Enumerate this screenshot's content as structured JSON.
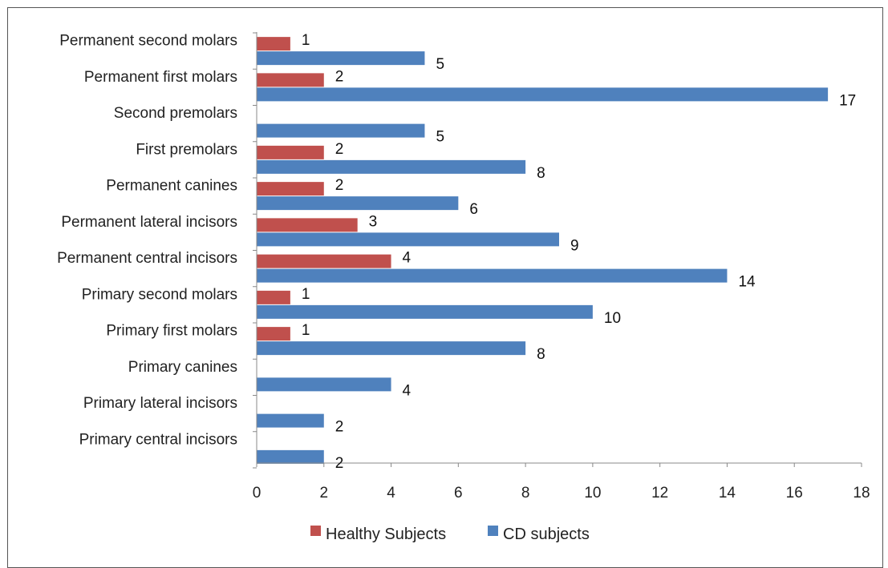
{
  "chart_data": {
    "type": "bar",
    "orientation": "horizontal",
    "categories": [
      "Permanent second molars",
      "Permanent first molars",
      "Second premolars",
      "First premolars",
      "Permanent canines",
      "Permanent lateral incisors",
      "Permanent central incisors",
      "Primary second molars",
      "Primary first molars",
      "Primary canines",
      "Primary lateral incisors",
      "Primary central incisors"
    ],
    "series": [
      {
        "name": "Healthy Subjects",
        "color": "#c0504d",
        "values": [
          1,
          2,
          null,
          2,
          2,
          3,
          4,
          1,
          1,
          null,
          null,
          null
        ]
      },
      {
        "name": "CD subjects",
        "color": "#4f81bd",
        "values": [
          5,
          17,
          5,
          8,
          6,
          9,
          14,
          10,
          8,
          4,
          2,
          2
        ]
      }
    ],
    "xlim": [
      0,
      18
    ],
    "xticks": [
      "0",
      "2",
      "4",
      "6",
      "8",
      "10",
      "12",
      "14",
      "16",
      "18"
    ],
    "grid": false,
    "legend_position": "bottom",
    "data_labels": true
  }
}
